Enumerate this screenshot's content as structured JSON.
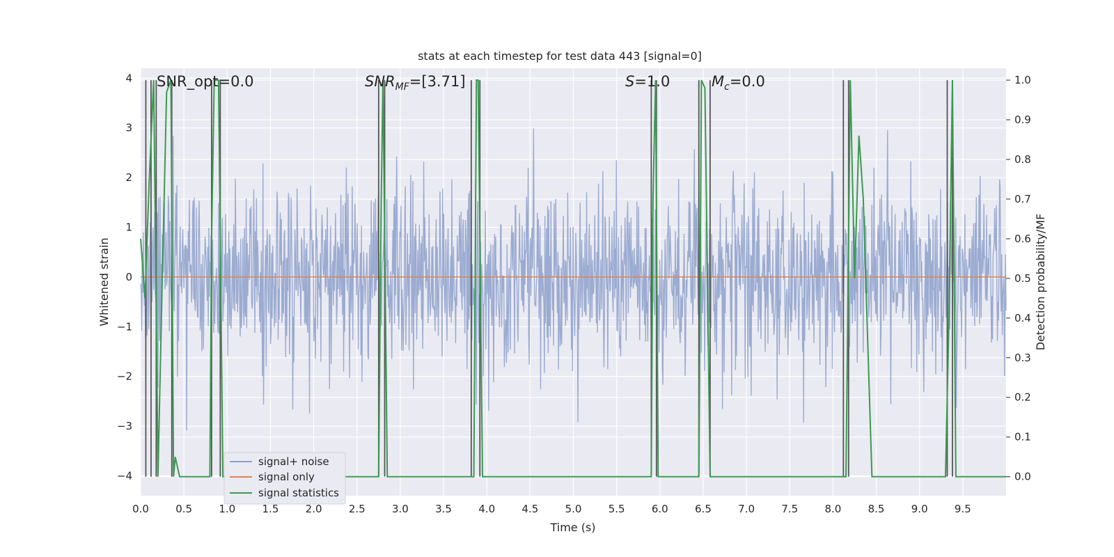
{
  "chart_data": {
    "type": "line",
    "title": "stats at each timestep for test data 443 [signal=0]",
    "xlabel": "Time (s)",
    "ylabel_left": "Whitened strain",
    "ylabel_right": "Detection probability/MF",
    "xlim": [
      0.0,
      10.0
    ],
    "ylim_left": [
      -4.4,
      4.2
    ],
    "ylim_right": [
      -0.048,
      1.03
    ],
    "grid": true,
    "legend_position": "lower-left",
    "xticks": [
      "0.0",
      "0.5",
      "1.0",
      "1.5",
      "2.0",
      "2.5",
      "3.0",
      "3.5",
      "4.0",
      "4.5",
      "5.0",
      "5.5",
      "6.0",
      "6.5",
      "7.0",
      "7.5",
      "8.0",
      "8.5",
      "9.0",
      "9.5"
    ],
    "yticks_left": [
      "4",
      "3",
      "2",
      "1",
      "0",
      "−1",
      "−2",
      "−3",
      "−4"
    ],
    "yticks_right": [
      "1.0",
      "0.9",
      "0.8",
      "0.7",
      "0.6",
      "0.5",
      "0.4",
      "0.3",
      "0.2",
      "0.1",
      "0.0"
    ],
    "annotations": [
      {
        "text": "SNR_opt=0.0",
        "x": 0.18
      },
      {
        "text": "SNR_MF=[3.71]",
        "x": 2.6
      },
      {
        "text": "S=1.0",
        "x": 5.6
      },
      {
        "text": "M_c=0.0",
        "x": 6.62
      }
    ],
    "series": [
      {
        "name": "signal+ noise",
        "axis": "left",
        "color": "#8da0cb",
        "style": "noise",
        "sigma": 0.9,
        "n_points": 1600
      },
      {
        "name": "signal only",
        "axis": "left",
        "color": "#dd8452",
        "x": [
          0.0,
          10.0
        ],
        "y": [
          0.0,
          0.0
        ]
      },
      {
        "name": "signal statistics",
        "axis": "right",
        "color": "#3a9a4f",
        "x": [
          0.0,
          0.05,
          0.1,
          0.15,
          0.18,
          0.2,
          0.25,
          0.3,
          0.35,
          0.38,
          0.4,
          0.45,
          0.5,
          0.8,
          0.82,
          0.85,
          0.9,
          0.95,
          1.0,
          2.75,
          2.78,
          2.8,
          2.85,
          2.9,
          3.85,
          3.88,
          3.9,
          3.95,
          4.0,
          5.9,
          5.92,
          5.95,
          5.98,
          6.0,
          6.45,
          6.48,
          6.52,
          6.58,
          6.62,
          8.1,
          8.15,
          8.2,
          8.25,
          8.3,
          8.35,
          8.45,
          8.5,
          9.3,
          9.34,
          9.38,
          9.42,
          9.45,
          10.0
        ],
        "y": [
          0.6,
          0.45,
          0.75,
          1.0,
          0.45,
          0.0,
          0.5,
          0.97,
          1.0,
          0.0,
          0.05,
          0.0,
          0.0,
          0.0,
          0.6,
          1.0,
          1.0,
          0.0,
          0.0,
          0.0,
          0.7,
          1.0,
          0.0,
          0.0,
          0.0,
          1.0,
          1.0,
          0.0,
          0.0,
          0.0,
          0.7,
          1.0,
          0.0,
          0.0,
          0.0,
          1.0,
          0.98,
          0.0,
          0.0,
          0.0,
          0.0,
          1.0,
          0.5,
          0.86,
          0.7,
          0.0,
          0.0,
          0.0,
          0.4,
          1.0,
          0.0,
          0.0,
          0.0
        ]
      }
    ],
    "vertical_lines": {
      "color": "#555555",
      "x": [
        0.06,
        0.12,
        0.18,
        0.36,
        0.82,
        0.92,
        2.75,
        2.82,
        3.82,
        3.92,
        5.9,
        5.96,
        6.45,
        6.58,
        8.12,
        8.18,
        9.32,
        9.38
      ]
    }
  }
}
